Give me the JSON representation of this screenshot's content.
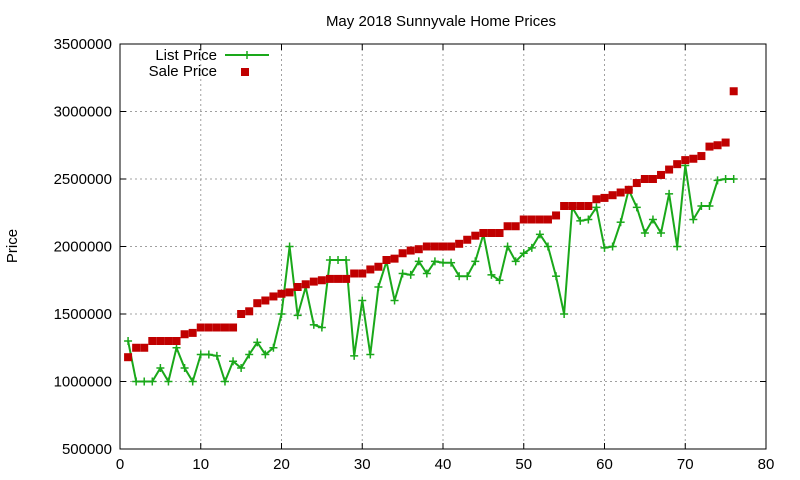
{
  "chart_data": {
    "type": "line",
    "title": "May 2018 Sunnyvale Home Prices",
    "xlabel": "",
    "ylabel": "Price",
    "xlim": [
      0,
      80
    ],
    "ylim": [
      500000,
      3500000
    ],
    "x_ticks": [
      "0",
      "10",
      "20",
      "30",
      "40",
      "50",
      "60",
      "70",
      "80"
    ],
    "y_ticks": [
      "500000",
      "1000000",
      "1500000",
      "2000000",
      "2500000",
      "3000000",
      "3500000"
    ],
    "grid": true,
    "legend_position": "top-left",
    "colors": {
      "list": "#1aa81a",
      "sale": "#c00000"
    },
    "series": [
      {
        "name": "List Price",
        "style": "line-plus",
        "x": [
          1,
          2,
          3,
          4,
          5,
          6,
          7,
          8,
          9,
          10,
          11,
          12,
          13,
          14,
          15,
          16,
          17,
          18,
          19,
          20,
          21,
          22,
          23,
          24,
          25,
          26,
          27,
          28,
          29,
          30,
          31,
          32,
          33,
          34,
          35,
          36,
          37,
          38,
          39,
          40,
          41,
          42,
          43,
          44,
          45,
          46,
          47,
          48,
          49,
          50,
          51,
          52,
          53,
          54,
          55,
          56,
          57,
          58,
          59,
          60,
          61,
          62,
          63,
          64,
          65,
          66,
          67,
          68,
          69,
          70,
          71,
          72,
          73,
          74,
          75,
          76
        ],
        "values": [
          1300000,
          1000000,
          1000000,
          1000000,
          1100000,
          1000000,
          1250000,
          1100000,
          1000000,
          1200000,
          1200000,
          1190000,
          1000000,
          1150000,
          1100000,
          1200000,
          1290000,
          1200000,
          1250000,
          1500000,
          2000000,
          1490000,
          1700000,
          1420000,
          1400000,
          1900000,
          1900000,
          1900000,
          1190000,
          1600000,
          1200000,
          1700000,
          1890000,
          1600000,
          1800000,
          1790000,
          1890000,
          1800000,
          1890000,
          1880000,
          1880000,
          1780000,
          1780000,
          1890000,
          2090000,
          1790000,
          1750000,
          2000000,
          1890000,
          1950000,
          1990000,
          2090000,
          2000000,
          1780000,
          1500000,
          2290000,
          2190000,
          2200000,
          2290000,
          1990000,
          2000000,
          2180000,
          2420000,
          2290000,
          2100000,
          2200000,
          2100000,
          2390000,
          2000000,
          2600000,
          2200000,
          2300000,
          2300000,
          2490000,
          2500000,
          2500000
        ]
      },
      {
        "name": "Sale Price",
        "style": "points-square",
        "x": [
          1,
          2,
          3,
          4,
          5,
          6,
          7,
          8,
          9,
          10,
          11,
          12,
          13,
          14,
          15,
          16,
          17,
          18,
          19,
          20,
          21,
          22,
          23,
          24,
          25,
          26,
          27,
          28,
          29,
          30,
          31,
          32,
          33,
          34,
          35,
          36,
          37,
          38,
          39,
          40,
          41,
          42,
          43,
          44,
          45,
          46,
          47,
          48,
          49,
          50,
          51,
          52,
          53,
          54,
          55,
          56,
          57,
          58,
          59,
          60,
          61,
          62,
          63,
          64,
          65,
          66,
          67,
          68,
          69,
          70,
          71,
          72,
          73,
          74,
          75,
          76
        ],
        "values": [
          1180000,
          1250000,
          1250000,
          1300000,
          1300000,
          1300000,
          1300000,
          1350000,
          1360000,
          1400000,
          1400000,
          1400000,
          1400000,
          1400000,
          1500000,
          1520000,
          1580000,
          1600000,
          1630000,
          1650000,
          1660000,
          1700000,
          1720000,
          1740000,
          1750000,
          1760000,
          1760000,
          1760000,
          1800000,
          1800000,
          1830000,
          1850000,
          1900000,
          1910000,
          1950000,
          1970000,
          1980000,
          2000000,
          2000000,
          2000000,
          2000000,
          2020000,
          2050000,
          2080000,
          2100000,
          2100000,
          2100000,
          2150000,
          2150000,
          2200000,
          2200000,
          2200000,
          2200000,
          2230000,
          2300000,
          2300000,
          2300000,
          2300000,
          2350000,
          2360000,
          2380000,
          2400000,
          2420000,
          2470000,
          2500000,
          2500000,
          2530000,
          2570000,
          2610000,
          2640000,
          2650000,
          2670000,
          2740000,
          2750000,
          2770000,
          3150000
        ]
      }
    ]
  }
}
